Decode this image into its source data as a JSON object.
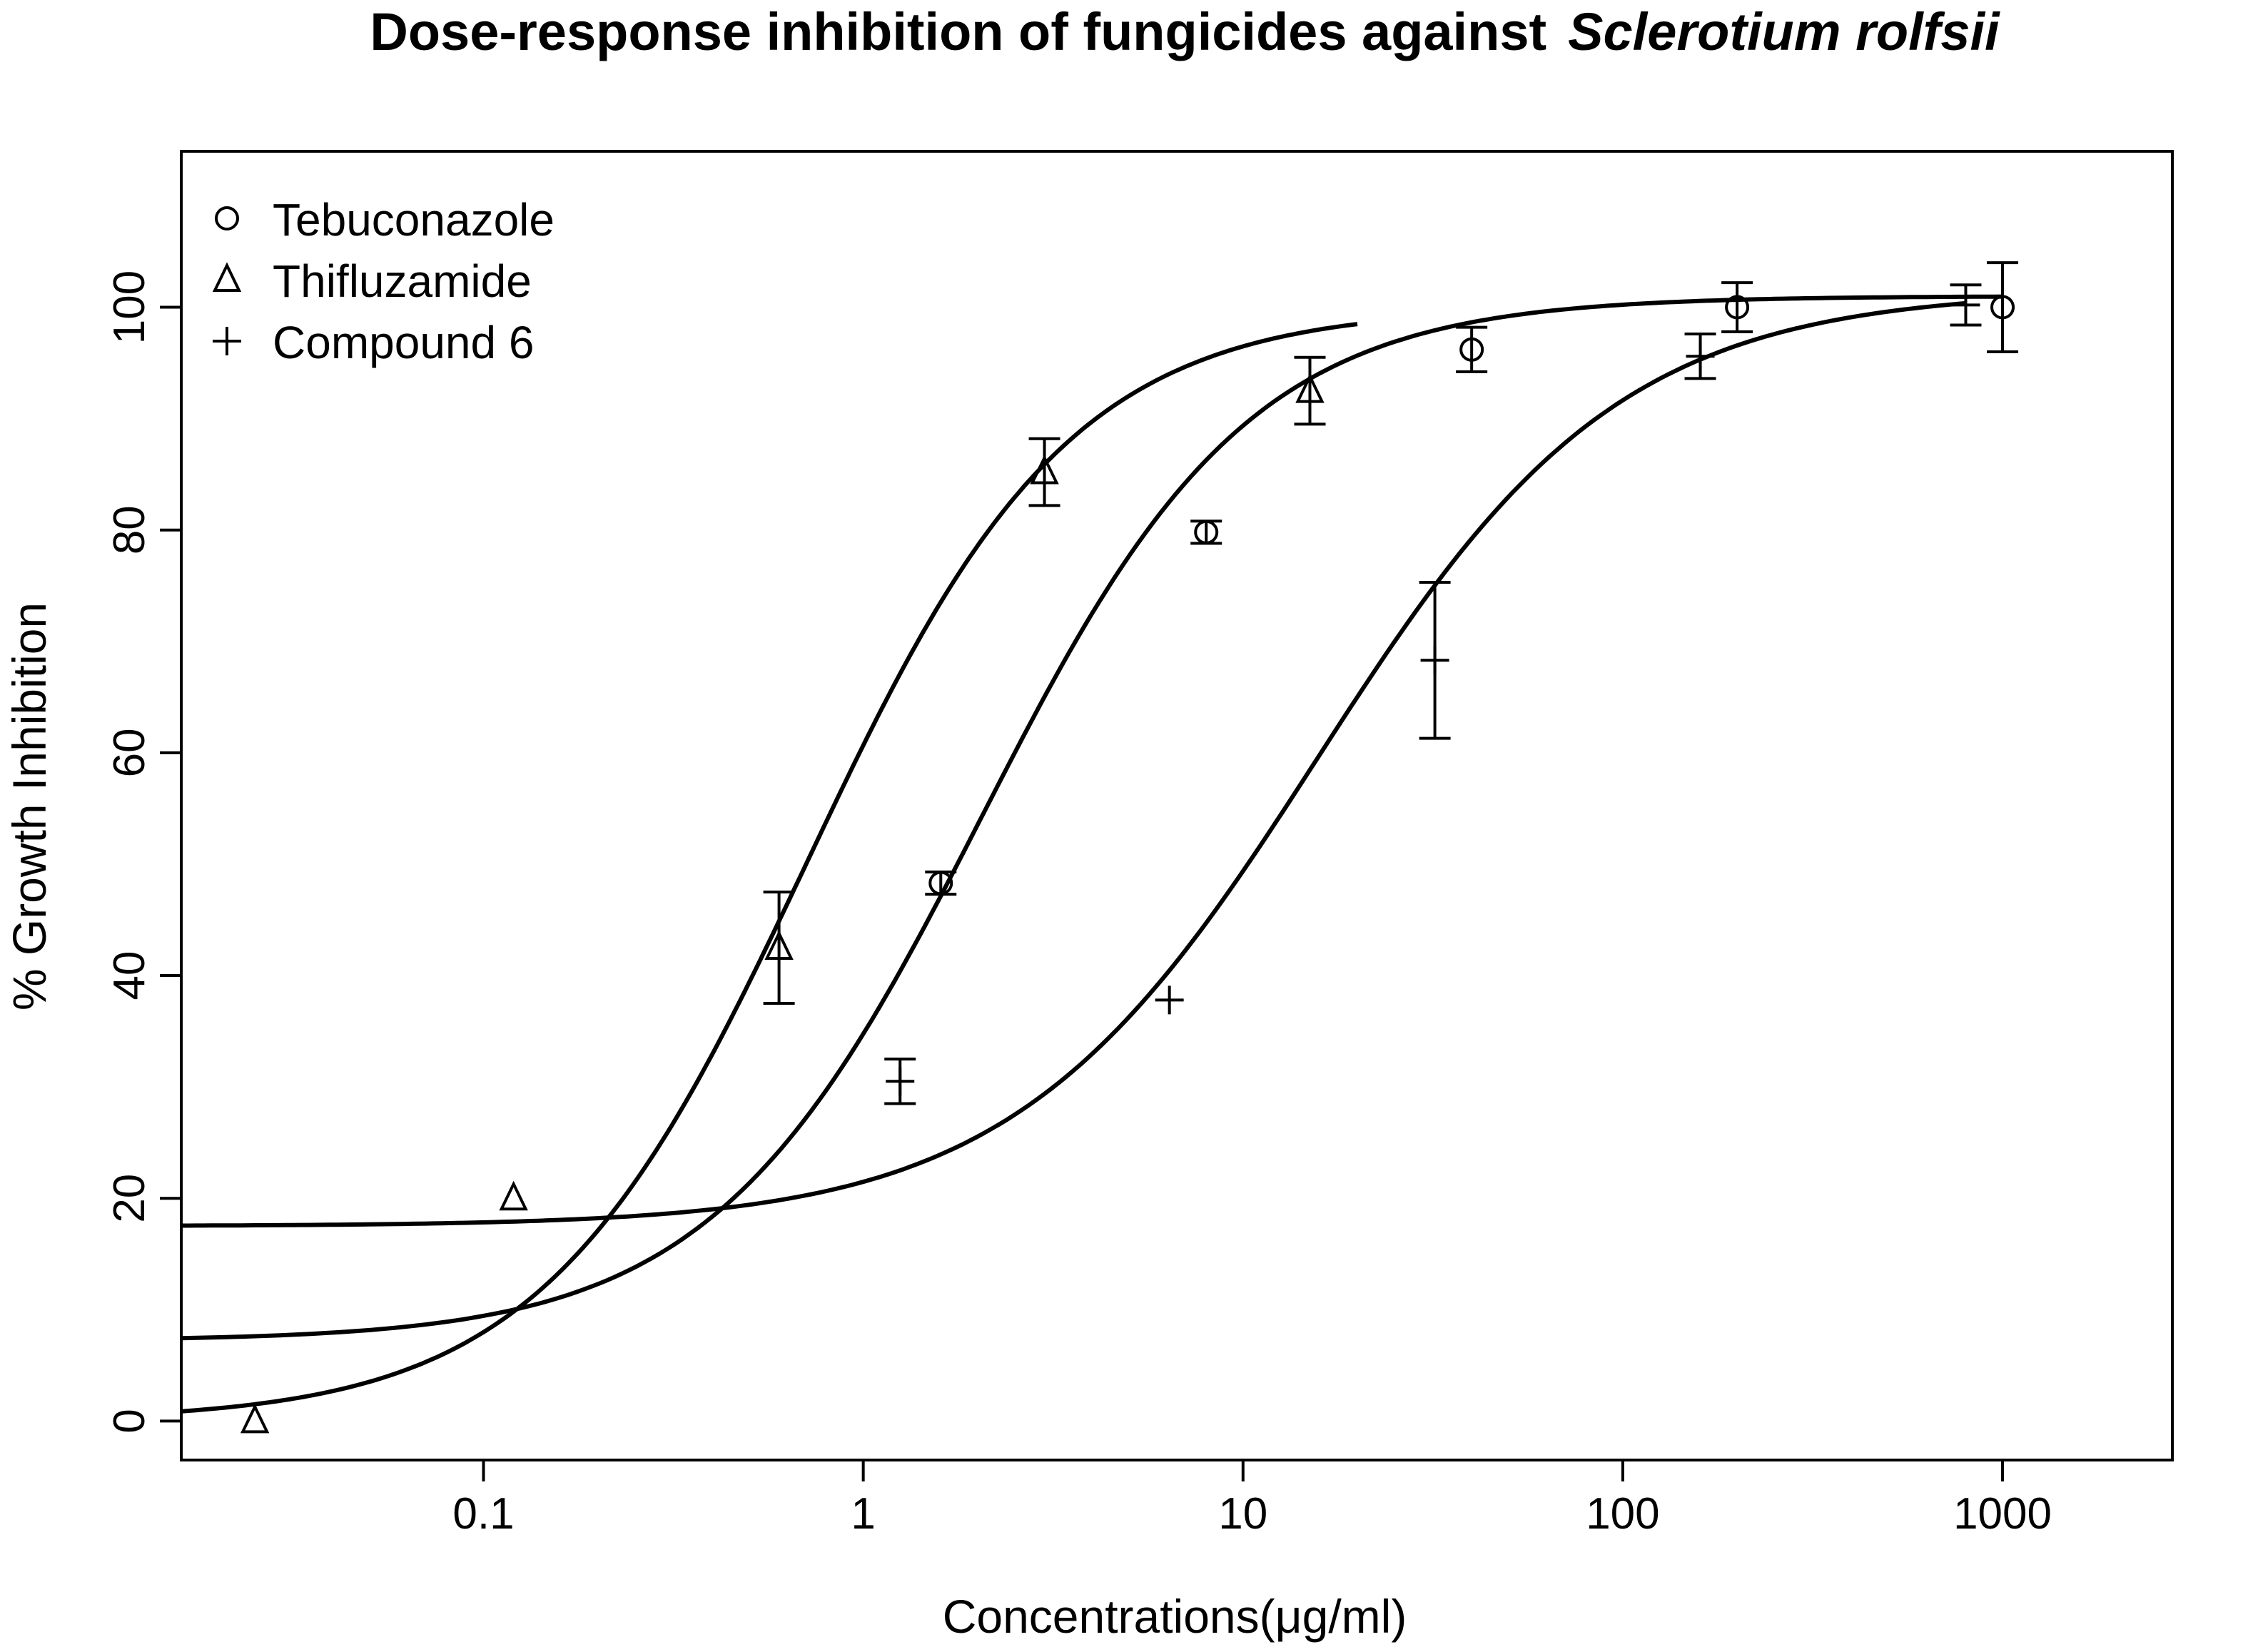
{
  "chart_data": {
    "type": "scatter",
    "title": "Dose-response inhibition of fungicides against",
    "title_italic": "Sclerotium rolfsii",
    "xlabel": "Concentrations(μg/ml)",
    "ylabel": "% Growth Inhibition",
    "x_scale": "log",
    "xlim": [
      0.016,
      2800
    ],
    "ylim": [
      -3.5,
      114
    ],
    "x_ticks": [
      0.1,
      1,
      10,
      100,
      1000
    ],
    "x_tick_labels": [
      "0.1",
      "1",
      "10",
      "100",
      "1000"
    ],
    "y_ticks": [
      0,
      20,
      40,
      60,
      80,
      100
    ],
    "y_tick_labels": [
      "0",
      "20",
      "40",
      "60",
      "80",
      "100"
    ],
    "grid": false,
    "legend_position": "top-left",
    "series": [
      {
        "name": "Tebuconazole",
        "marker": "circle",
        "points": [
          {
            "x": 1.6,
            "y": 48.3,
            "err": 1.0
          },
          {
            "x": 8,
            "y": 79.8,
            "err": 1.0
          },
          {
            "x": 40,
            "y": 96.2,
            "err": 2.0
          },
          {
            "x": 200,
            "y": 100,
            "err": 2.2
          },
          {
            "x": 1000,
            "y": 100,
            "err": 4.0
          }
        ],
        "fit": {
          "bottom": 7.2,
          "top": 101,
          "ec50": 2.04,
          "hill": 1.23,
          "x_range": [
            0.016,
            1000
          ]
        }
      },
      {
        "name": "Thifluzamide",
        "marker": "triangle",
        "points": [
          {
            "x": 0.025,
            "y": 0,
            "err": 0
          },
          {
            "x": 0.12,
            "y": 20,
            "err": 0
          },
          {
            "x": 0.6,
            "y": 42.5,
            "err": 5.0
          },
          {
            "x": 3,
            "y": 85.2,
            "err": 3.0
          },
          {
            "x": 15,
            "y": 92.5,
            "err": 3.0
          }
        ],
        "fit": {
          "bottom": 0,
          "top": 100,
          "ec50": 0.707,
          "hill": 1.25,
          "x_range": [
            0.016,
            20
          ]
        }
      },
      {
        "name": "Compound 6",
        "marker": "plus",
        "points": [
          {
            "x": 1.25,
            "y": 30.5,
            "err": 2.0
          },
          {
            "x": 6.4,
            "y": 37.8,
            "err": 0
          },
          {
            "x": 32,
            "y": 68.3,
            "err": 7.0
          },
          {
            "x": 160,
            "y": 95.6,
            "err": 2.0
          },
          {
            "x": 800,
            "y": 100.2,
            "err": 1.8
          }
        ],
        "fit": {
          "bottom": 17.5,
          "top": 101.5,
          "ec50": 15.7,
          "hill": 1.09,
          "x_range": [
            0.016,
            800
          ]
        }
      }
    ]
  }
}
